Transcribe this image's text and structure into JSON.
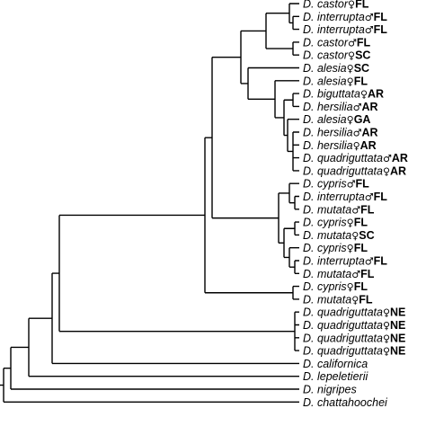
{
  "tree": {
    "symbols": {
      "female": "♀",
      "male": "♂"
    },
    "leaves": [
      {
        "species": "D. castor",
        "sex": "female",
        "locality": "FL"
      },
      {
        "species": "D. interrupta",
        "sex": "male",
        "locality": "FL"
      },
      {
        "species": "D. interrupta",
        "sex": "male",
        "locality": "FL"
      },
      {
        "species": "D. castor",
        "sex": "male",
        "locality": "FL"
      },
      {
        "species": "D. castor",
        "sex": "female",
        "locality": "SC"
      },
      {
        "species": "D. alesia",
        "sex": "female",
        "locality": "SC"
      },
      {
        "species": "D. alesia",
        "sex": "female",
        "locality": "FL"
      },
      {
        "species": "D. biguttata",
        "sex": "female",
        "locality": "AR"
      },
      {
        "species": "D. hersilia",
        "sex": "male",
        "locality": "AR"
      },
      {
        "species": "D. alesia",
        "sex": "female",
        "locality": "GA"
      },
      {
        "species": "D. hersilia",
        "sex": "male",
        "locality": "AR"
      },
      {
        "species": "D. hersilia",
        "sex": "female",
        "locality": "AR"
      },
      {
        "species": "D. quadriguttata",
        "sex": "male",
        "locality": "AR"
      },
      {
        "species": "D. quadriguttata",
        "sex": "female",
        "locality": "AR"
      },
      {
        "species": "D. cypris",
        "sex": "male",
        "locality": "FL"
      },
      {
        "species": "D. interrupta",
        "sex": "male",
        "locality": "FL"
      },
      {
        "species": "D. mutata",
        "sex": "male",
        "locality": "FL"
      },
      {
        "species": "D. cypris",
        "sex": "female",
        "locality": "FL"
      },
      {
        "species": "D. mutata",
        "sex": "female",
        "locality": "SC"
      },
      {
        "species": "D. cypris",
        "sex": "female",
        "locality": "FL"
      },
      {
        "species": "D. interrupta",
        "sex": "male",
        "locality": "FL"
      },
      {
        "species": "D. mutata",
        "sex": "male",
        "locality": "FL"
      },
      {
        "species": "D. cypris",
        "sex": "female",
        "locality": "FL"
      },
      {
        "species": "D. mutata",
        "sex": "female",
        "locality": "FL"
      },
      {
        "species": "D. quadriguttata",
        "sex": "female",
        "locality": "NE"
      },
      {
        "species": "D. quadriguttata",
        "sex": "female",
        "locality": "NE"
      },
      {
        "species": "D. quadriguttata",
        "sex": "female",
        "locality": "NE"
      },
      {
        "species": "D. quadriguttata",
        "sex": "female",
        "locality": "NE"
      },
      {
        "species": "D. californica",
        "sex": "",
        "locality": ""
      },
      {
        "species": "D. lepeletierii",
        "sex": "",
        "locality": ""
      },
      {
        "species": "D. nigripes",
        "sex": "",
        "locality": ""
      },
      {
        "species": "D. chattahoochei",
        "sex": "",
        "locality": ""
      }
    ]
  }
}
